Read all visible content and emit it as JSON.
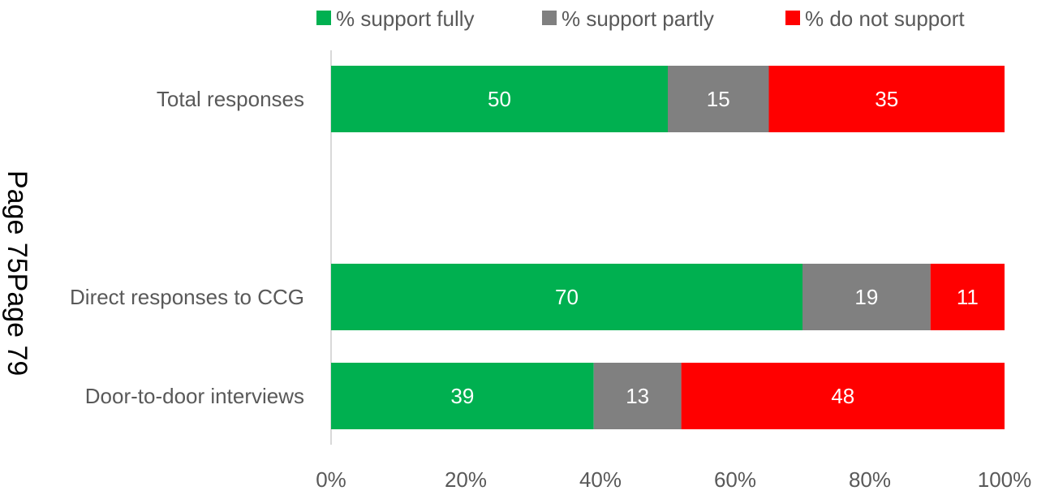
{
  "chart_data": {
    "type": "bar",
    "orientation": "horizontal",
    "stacked": true,
    "percent_stacked": true,
    "categories": [
      "Total responses",
      "Direct responses to CCG",
      "Door-to-door interviews"
    ],
    "series": [
      {
        "name": "% support fully",
        "values": [
          50,
          70,
          39
        ],
        "color": "#00b050"
      },
      {
        "name": "% support partly",
        "values": [
          15,
          19,
          13
        ],
        "color": "#808080"
      },
      {
        "name": "% do not support",
        "values": [
          35,
          11,
          48
        ],
        "color": "#ff0000"
      }
    ],
    "x_ticks": [
      "0%",
      "20%",
      "40%",
      "60%",
      "80%",
      "100%"
    ],
    "xlim": [
      0,
      100
    ],
    "legend_position": "top",
    "grid": false
  },
  "page_stamp": "Page 75Page 79"
}
